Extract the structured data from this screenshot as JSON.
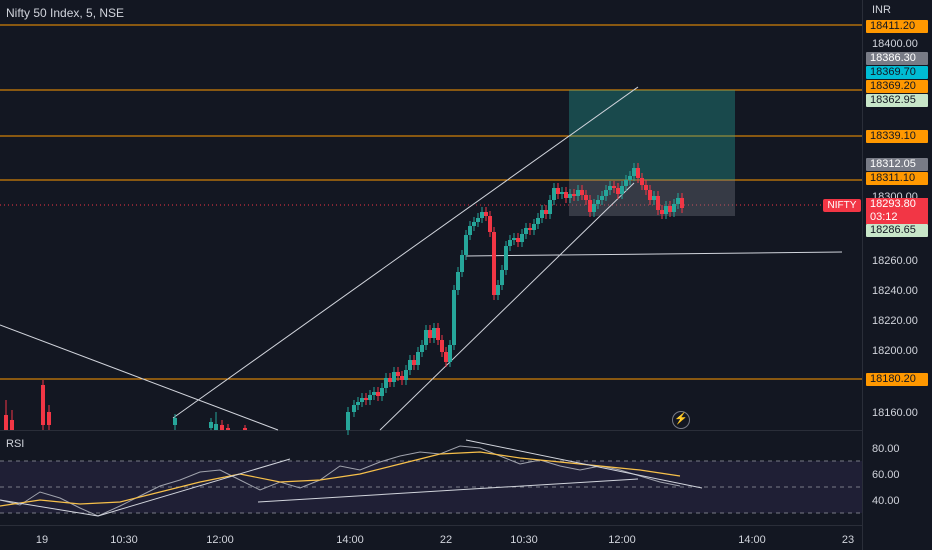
{
  "legend": {
    "symbol": "Nifty 50 Index, 5, NSE"
  },
  "currency": "INR",
  "price_axis": [
    "18400.00",
    "18300.00",
    "18260.00",
    "18240.00",
    "18220.00",
    "18200.00",
    "18160.00"
  ],
  "price_tags": [
    {
      "label": "18411.20",
      "bg": "#ff9800",
      "fg": "#131722"
    },
    {
      "label": "18386.30",
      "bg": "#787b86",
      "fg": "#ffffff"
    },
    {
      "label": "18369.70",
      "bg": "#00bcd4",
      "fg": "#131722"
    },
    {
      "label": "18369.20",
      "bg": "#ff9800",
      "fg": "#131722"
    },
    {
      "label": "18362.95",
      "bg": "#c8e6c9",
      "fg": "#131722"
    },
    {
      "label": "18339.10",
      "bg": "#ff9800",
      "fg": "#131722"
    },
    {
      "label": "18312.05",
      "bg": "#787b86",
      "fg": "#ffffff"
    },
    {
      "label": "18311.10",
      "bg": "#ff9800",
      "fg": "#131722"
    },
    {
      "label": "18286.65",
      "bg": "#c8e6c9",
      "fg": "#131722"
    },
    {
      "label": "18180.20",
      "bg": "#ff9800",
      "fg": "#131722"
    }
  ],
  "last_price": {
    "symbol": "NIFTY",
    "price": "18293.80",
    "countdown": "03:12"
  },
  "rsi": {
    "title": "RSI",
    "axis": [
      "80.00",
      "60.00",
      "40.00"
    ]
  },
  "time_axis": [
    "19",
    "10:30",
    "12:00",
    "14:00",
    "22",
    "10:30",
    "12:00",
    "14:00",
    "23"
  ],
  "colors": {
    "background": "#131722",
    "up": "#26a69a",
    "down": "#f23645",
    "level": "#ff9800",
    "rsi_band": "#7e57c2"
  }
}
